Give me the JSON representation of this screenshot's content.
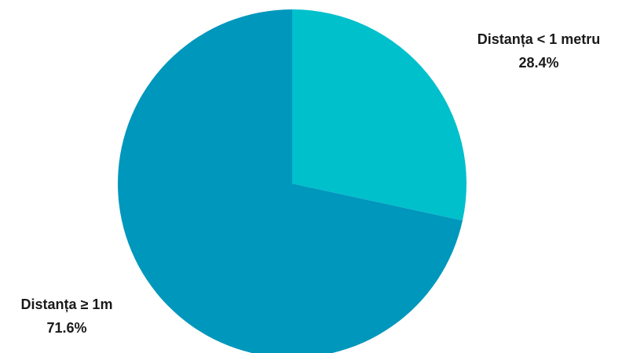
{
  "chart_data": {
    "type": "pie",
    "slices": [
      {
        "label": "Distanța < 1 metru",
        "value": 28.4,
        "value_label": "28.4%",
        "color": "#00c0cc"
      },
      {
        "label": "Distanța ≥ 1m",
        "value": 71.6,
        "value_label": "71.6%",
        "color": "#0097bc"
      }
    ],
    "start_angle": "12 o'clock",
    "direction": "clockwise",
    "legend": "none",
    "labels_position": "outside"
  }
}
